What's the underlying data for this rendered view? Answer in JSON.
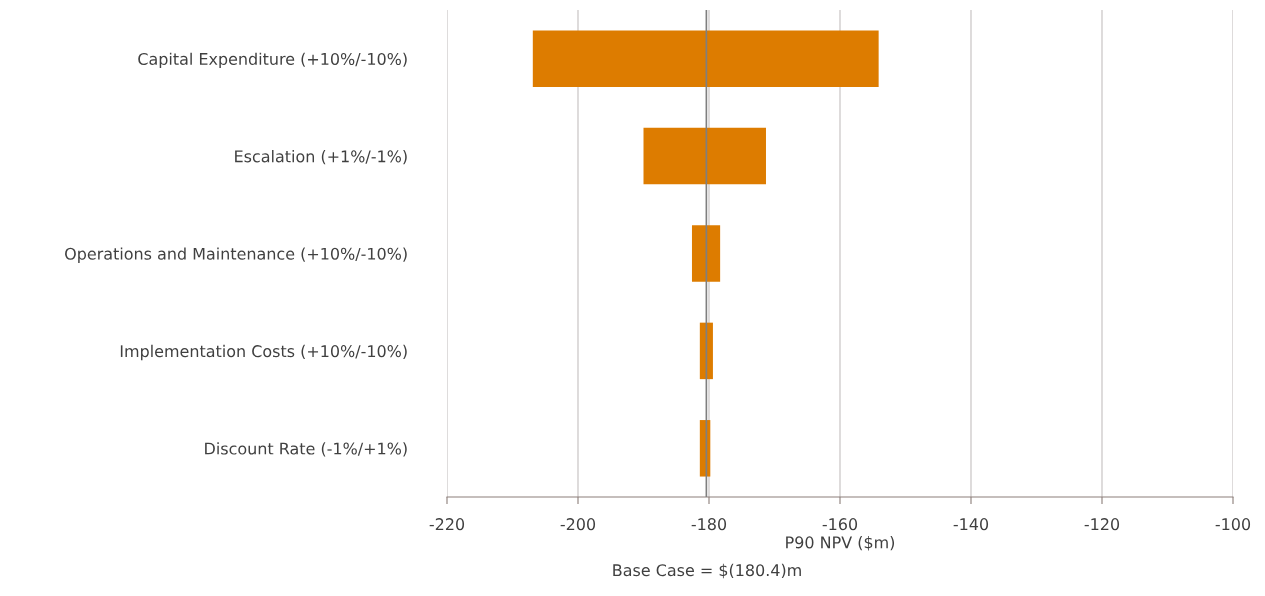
{
  "chart_data": {
    "type": "bar",
    "orientation": "horizontal",
    "categories": [
      "Capital Expenditure (+10%/-10%)",
      "Escalation (+1%/-1%)",
      "Operations and Maintenance (+10%/-10%)",
      "Implementation Costs (+10%/-10%)",
      "Discount Rate (-1%/+1%)"
    ],
    "base": [
      -206.9,
      -190.0,
      -182.6,
      -181.4,
      -181.4
    ],
    "values": [
      52.8,
      18.7,
      4.3,
      2.0,
      1.6
    ],
    "color": "#dd7c00",
    "xlim": [
      -220,
      -100
    ],
    "xticks": [
      -220,
      -200,
      -180,
      -160,
      -140,
      -120,
      -100
    ],
    "grid": "x",
    "xlabel": "P90 NPV ($m)",
    "annotations": [
      "Base Case = $(180.4)m"
    ],
    "ref_lines": [
      {
        "axis": "x",
        "value": -180.4,
        "color": "#7f7f7f"
      }
    ]
  }
}
